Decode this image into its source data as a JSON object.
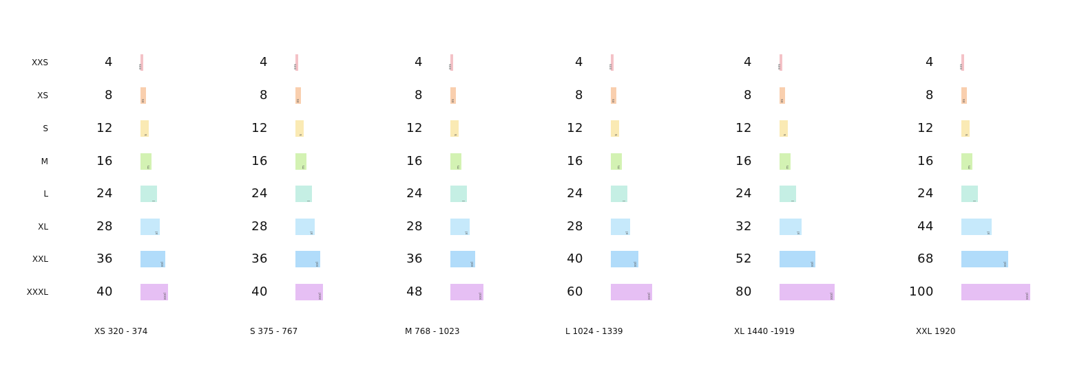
{
  "chart_data": {
    "type": "bar",
    "title": "",
    "categories": [
      "XXS",
      "XS",
      "S",
      "M",
      "L",
      "XL",
      "XXL",
      "XXXL"
    ],
    "bar_tags": [
      "xxs",
      "xs",
      "s",
      "m",
      "l",
      "xl",
      "xxl",
      "xxxl"
    ],
    "colors": [
      "#f4c2c7",
      "#f9cfae",
      "#faeab4",
      "#d3f2b3",
      "#c5efe4",
      "#c6e9fb",
      "#b1dcfa",
      "#e6bff4"
    ],
    "series": [
      {
        "name": "XS 320 - 374",
        "values": [
          4,
          8,
          12,
          16,
          24,
          28,
          36,
          40
        ]
      },
      {
        "name": "S 375 - 767",
        "values": [
          4,
          8,
          12,
          16,
          24,
          28,
          36,
          40
        ]
      },
      {
        "name": "M 768 - 1023",
        "values": [
          4,
          8,
          12,
          16,
          24,
          28,
          36,
          48
        ]
      },
      {
        "name": "L 1024 - 1339",
        "values": [
          4,
          8,
          12,
          16,
          24,
          28,
          40,
          60
        ]
      },
      {
        "name": "XL 1440 -1919",
        "values": [
          4,
          8,
          12,
          16,
          24,
          32,
          52,
          80
        ]
      },
      {
        "name": "XXL 1920",
        "values": [
          4,
          8,
          12,
          16,
          24,
          44,
          68,
          100
        ]
      }
    ],
    "xlabel": "",
    "ylabel": "",
    "xlim": [
      0,
      100
    ]
  }
}
